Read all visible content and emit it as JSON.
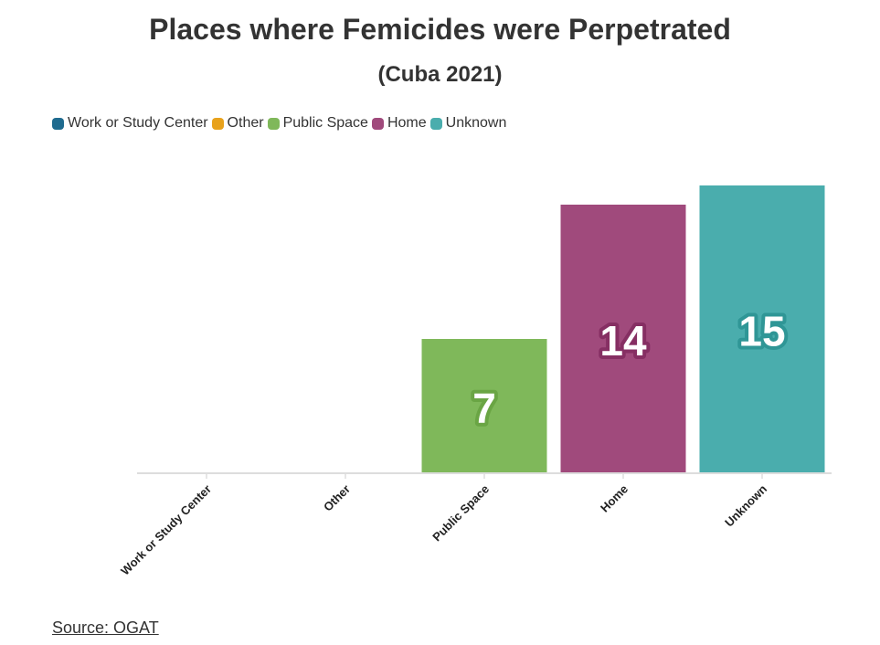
{
  "chart_data": {
    "type": "bar",
    "title": "Places where Femicides were Perpetrated",
    "subtitle": "(Cuba 2021)",
    "categories": [
      "Work or Study Center",
      "Other",
      "Public Space",
      "Home",
      "Unknown"
    ],
    "values": [
      0,
      0,
      7,
      14,
      15
    ],
    "colors": [
      "#1f6b8f",
      "#e8a21c",
      "#7fb85a",
      "#a04a7c",
      "#4aadad"
    ],
    "label_shadow_colors": [
      "#1a5a78",
      "#c98a12",
      "#6aa544",
      "#862f63",
      "#2f9696"
    ],
    "legend": [
      "Work or Study Center",
      "Other",
      "Public Space",
      "Home",
      "Unknown"
    ],
    "legend_position": "top-left",
    "ylim": [
      0,
      16
    ],
    "grid": false,
    "xlabel": "",
    "ylabel": ""
  },
  "source": "Source: OGAT"
}
